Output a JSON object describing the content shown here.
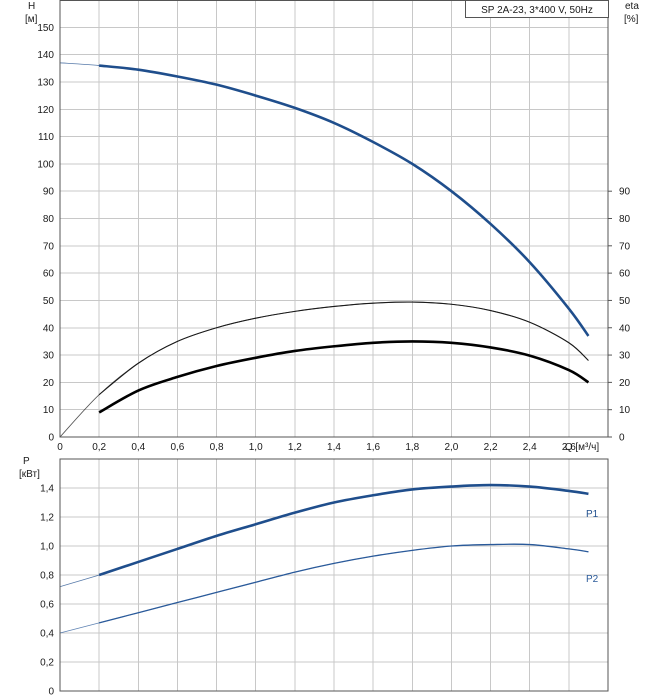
{
  "chart_data": [
    {
      "type": "line",
      "title": "SP 2A-23, 3*400 V, 50Hz",
      "x_axis": {
        "label": "Q [м³/ч]",
        "range": [
          0,
          2.8
        ],
        "ticks": [
          0,
          0.2,
          0.4,
          0.6,
          0.8,
          1.0,
          1.2,
          1.4,
          1.6,
          1.8,
          2.0,
          2.2,
          2.4,
          2.6
        ],
        "tick_labels": [
          "0",
          "0,2",
          "0,4",
          "0,6",
          "0,8",
          "1,0",
          "1,2",
          "1,4",
          "1,6",
          "1,8",
          "2,0",
          "2,2",
          "2,4",
          "2,6"
        ]
      },
      "y_axis_left": {
        "label": "H",
        "unit": "[м]",
        "range": [
          0,
          160
        ],
        "ticks": [
          0,
          10,
          20,
          30,
          40,
          50,
          60,
          70,
          80,
          90,
          100,
          110,
          120,
          130,
          140,
          150
        ]
      },
      "y_axis_right": {
        "label": "eta",
        "unit": "[%]",
        "range": [
          0,
          160
        ],
        "ticks": [
          0,
          10,
          20,
          30,
          40,
          50,
          60,
          70,
          80,
          90
        ]
      },
      "grid": true,
      "legend": "none",
      "colors": {
        "head": "#1f4e8c",
        "eta_pump": "#1a1a1a",
        "eta_total": "#000000",
        "grid": "#c8c8c8"
      },
      "series": [
        {
          "axis": "left",
          "style": "thick-blue",
          "x": [
            0,
            0.2,
            0.4,
            0.6,
            0.8,
            1.0,
            1.2,
            1.4,
            1.6,
            1.8,
            2.0,
            2.2,
            2.4,
            2.6,
            2.7
          ],
          "y": [
            137,
            136,
            134.5,
            132,
            129,
            125,
            120.5,
            115,
            108,
            100,
            90,
            78,
            64,
            47,
            37
          ],
          "solid_from_x": 0.2
        },
        {
          "axis": "right",
          "style": "thin-black",
          "x": [
            0,
            0.2,
            0.4,
            0.6,
            0.8,
            1.0,
            1.2,
            1.4,
            1.6,
            1.8,
            2.0,
            2.2,
            2.4,
            2.6,
            2.7
          ],
          "y": [
            0,
            15.5,
            27,
            35,
            40,
            43.5,
            46,
            47.8,
            49,
            49.4,
            48.6,
            46.3,
            42,
            34.5,
            28
          ],
          "solid_from_x": 0.2
        },
        {
          "axis": "right",
          "style": "thick-black",
          "x": [
            0.2,
            0.4,
            0.6,
            0.8,
            1.0,
            1.2,
            1.4,
            1.6,
            1.8,
            2.0,
            2.2,
            2.4,
            2.6,
            2.7
          ],
          "y": [
            9,
            17,
            22,
            26,
            29,
            31.5,
            33.2,
            34.5,
            35,
            34.5,
            32.8,
            29.8,
            24.5,
            20
          ]
        }
      ]
    },
    {
      "type": "line",
      "x_axis": {
        "range": [
          0,
          2.8
        ]
      },
      "y_axis_left": {
        "label": "P",
        "unit": "[кВт]",
        "range": [
          0,
          1.6
        ],
        "ticks": [
          0,
          0.2,
          0.4,
          0.6,
          0.8,
          1.0,
          1.2,
          1.4
        ],
        "tick_labels": [
          "0",
          "0,2",
          "0,4",
          "0,6",
          "0,8",
          "1,0",
          "1,2",
          "1,4"
        ]
      },
      "grid": true,
      "colors": {
        "P1": "#1f4e8c",
        "P2": "#2a5a9a"
      },
      "series": [
        {
          "name": "P1",
          "style": "thick-blue",
          "x": [
            0,
            0.2,
            0.4,
            0.6,
            0.8,
            1.0,
            1.2,
            1.4,
            1.6,
            1.8,
            2.0,
            2.2,
            2.4,
            2.6,
            2.7
          ],
          "y": [
            0.72,
            0.8,
            0.89,
            0.98,
            1.07,
            1.15,
            1.23,
            1.3,
            1.35,
            1.39,
            1.41,
            1.42,
            1.41,
            1.38,
            1.36
          ],
          "solid_from_x": 0.2
        },
        {
          "name": "P2",
          "style": "thin-blue",
          "x": [
            0,
            0.2,
            0.4,
            0.6,
            0.8,
            1.0,
            1.2,
            1.4,
            1.6,
            1.8,
            2.0,
            2.2,
            2.4,
            2.6,
            2.7
          ],
          "y": [
            0.4,
            0.47,
            0.54,
            0.61,
            0.68,
            0.75,
            0.82,
            0.88,
            0.93,
            0.97,
            1.0,
            1.01,
            1.01,
            0.98,
            0.96
          ],
          "solid_from_x": 0.2
        }
      ]
    }
  ]
}
